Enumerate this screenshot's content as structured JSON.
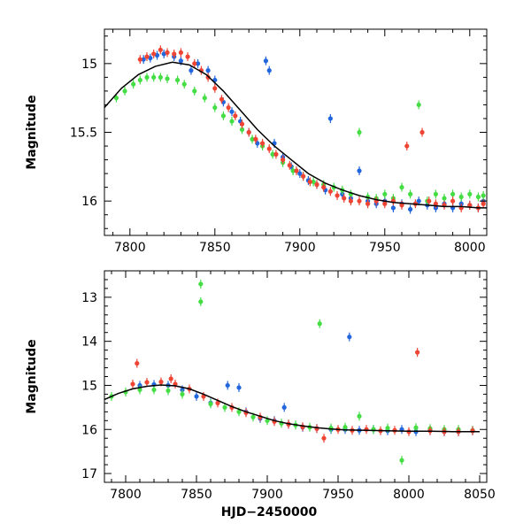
{
  "chart_data": [
    {
      "type": "scatter",
      "xlabel": "",
      "ylabel": "Magnitude",
      "xlim": [
        7785,
        8010
      ],
      "ylim": [
        16.25,
        14.75
      ],
      "y_inverted": true,
      "x_ticks": [
        "7800",
        "7850",
        "7900",
        "7950",
        "8000"
      ],
      "y_ticks": [
        "15",
        "15.5",
        "16"
      ],
      "grid": false,
      "legend": "none",
      "series": [
        {
          "color": "#2266dd",
          "points": [
            [
              7808,
              14.97
            ],
            [
              7812,
              14.96
            ],
            [
              7816,
              14.94
            ],
            [
              7820,
              14.93
            ],
            [
              7826,
              14.95
            ],
            [
              7830,
              14.98
            ],
            [
              7836,
              15.05
            ],
            [
              7840,
              15.0
            ],
            [
              7846,
              15.05
            ],
            [
              7850,
              15.12
            ],
            [
              7855,
              15.28
            ],
            [
              7860,
              15.35
            ],
            [
              7865,
              15.42
            ],
            [
              7870,
              15.5
            ],
            [
              7875,
              15.58
            ],
            [
              7880,
              14.98
            ],
            [
              7882,
              15.05
            ],
            [
              7885,
              15.58
            ],
            [
              7890,
              15.68
            ],
            [
              7895,
              15.75
            ],
            [
              7900,
              15.8
            ],
            [
              7905,
              15.85
            ],
            [
              7910,
              15.88
            ],
            [
              7915,
              15.92
            ],
            [
              7918,
              15.4
            ],
            [
              7925,
              15.95
            ],
            [
              7930,
              15.98
            ],
            [
              7935,
              15.78
            ],
            [
              7940,
              16.0
            ],
            [
              7945,
              16.02
            ],
            [
              7950,
              16.0
            ],
            [
              7955,
              16.05
            ],
            [
              7960,
              16.02
            ],
            [
              7965,
              16.06
            ],
            [
              7970,
              16.0
            ],
            [
              7975,
              16.03
            ],
            [
              7980,
              16.05
            ],
            [
              7985,
              16.02
            ],
            [
              7990,
              16.05
            ],
            [
              7995,
              16.02
            ],
            [
              8000,
              16.03
            ],
            [
              8005,
              16.05
            ],
            [
              8008,
              16.0
            ]
          ]
        },
        {
          "color": "#44dd44",
          "points": [
            [
              7792,
              15.25
            ],
            [
              7797,
              15.2
            ],
            [
              7802,
              15.15
            ],
            [
              7806,
              15.12
            ],
            [
              7810,
              15.1
            ],
            [
              7814,
              15.1
            ],
            [
              7818,
              15.1
            ],
            [
              7822,
              15.11
            ],
            [
              7828,
              15.12
            ],
            [
              7832,
              15.15
            ],
            [
              7838,
              15.2
            ],
            [
              7844,
              15.25
            ],
            [
              7850,
              15.32
            ],
            [
              7855,
              15.38
            ],
            [
              7860,
              15.42
            ],
            [
              7866,
              15.48
            ],
            [
              7872,
              15.55
            ],
            [
              7878,
              15.6
            ],
            [
              7884,
              15.66
            ],
            [
              7890,
              15.72
            ],
            [
              7896,
              15.78
            ],
            [
              7902,
              15.82
            ],
            [
              7908,
              15.86
            ],
            [
              7914,
              15.88
            ],
            [
              7920,
              15.9
            ],
            [
              7925,
              15.92
            ],
            [
              7930,
              15.95
            ],
            [
              7935,
              15.5
            ],
            [
              7940,
              15.97
            ],
            [
              7945,
              15.98
            ],
            [
              7950,
              15.95
            ],
            [
              7955,
              15.98
            ],
            [
              7960,
              15.9
            ],
            [
              7965,
              15.95
            ],
            [
              7970,
              15.3
            ],
            [
              7975,
              16.0
            ],
            [
              7980,
              15.95
            ],
            [
              7985,
              15.98
            ],
            [
              7990,
              15.95
            ],
            [
              7995,
              15.97
            ],
            [
              8000,
              15.95
            ],
            [
              8005,
              15.97
            ],
            [
              8008,
              15.96
            ]
          ]
        },
        {
          "color": "#ee4433",
          "points": [
            [
              7806,
              14.97
            ],
            [
              7810,
              14.95
            ],
            [
              7814,
              14.93
            ],
            [
              7818,
              14.9
            ],
            [
              7822,
              14.92
            ],
            [
              7826,
              14.93
            ],
            [
              7830,
              14.92
            ],
            [
              7834,
              14.95
            ],
            [
              7838,
              15.0
            ],
            [
              7842,
              15.05
            ],
            [
              7846,
              15.1
            ],
            [
              7850,
              15.18
            ],
            [
              7854,
              15.26
            ],
            [
              7858,
              15.32
            ],
            [
              7862,
              15.38
            ],
            [
              7866,
              15.44
            ],
            [
              7870,
              15.5
            ],
            [
              7874,
              15.55
            ],
            [
              7878,
              15.58
            ],
            [
              7882,
              15.62
            ],
            [
              7886,
              15.66
            ],
            [
              7890,
              15.7
            ],
            [
              7894,
              15.74
            ],
            [
              7898,
              15.78
            ],
            [
              7902,
              15.82
            ],
            [
              7906,
              15.86
            ],
            [
              7910,
              15.88
            ],
            [
              7914,
              15.9
            ],
            [
              7918,
              15.93
            ],
            [
              7922,
              15.96
            ],
            [
              7926,
              15.98
            ],
            [
              7930,
              16.0
            ],
            [
              7935,
              16.0
            ],
            [
              7940,
              16.02
            ],
            [
              7945,
              16.0
            ],
            [
              7950,
              16.02
            ],
            [
              7955,
              16.0
            ],
            [
              7960,
              16.03
            ],
            [
              7963,
              15.6
            ],
            [
              7968,
              16.02
            ],
            [
              7972,
              15.5
            ],
            [
              7976,
              16.0
            ],
            [
              7980,
              16.02
            ],
            [
              7985,
              16.03
            ],
            [
              7990,
              16.0
            ],
            [
              7995,
              16.05
            ],
            [
              8000,
              16.03
            ],
            [
              8005,
              16.05
            ],
            [
              8008,
              16.02
            ]
          ]
        }
      ],
      "model_curve": [
        [
          7785,
          15.32
        ],
        [
          7795,
          15.18
        ],
        [
          7805,
          15.08
        ],
        [
          7815,
          15.02
        ],
        [
          7825,
          14.99
        ],
        [
          7835,
          15.01
        ],
        [
          7845,
          15.08
        ],
        [
          7855,
          15.2
        ],
        [
          7865,
          15.34
        ],
        [
          7875,
          15.48
        ],
        [
          7885,
          15.6
        ],
        [
          7895,
          15.7
        ],
        [
          7905,
          15.8
        ],
        [
          7915,
          15.87
        ],
        [
          7925,
          15.92
        ],
        [
          7935,
          15.96
        ],
        [
          7945,
          15.99
        ],
        [
          7955,
          16.01
        ],
        [
          7965,
          16.02
        ],
        [
          7975,
          16.03
        ],
        [
          7985,
          16.04
        ],
        [
          7995,
          16.04
        ],
        [
          8005,
          16.05
        ],
        [
          8010,
          16.05
        ]
      ]
    },
    {
      "type": "scatter",
      "xlabel": "HJD−2450000",
      "ylabel": "Magnitude",
      "xlim": [
        7785,
        8055
      ],
      "ylim": [
        17.2,
        12.4
      ],
      "y_inverted": true,
      "x_ticks": [
        "7800",
        "7850",
        "7900",
        "7950",
        "8000",
        "8050"
      ],
      "y_ticks": [
        "13",
        "14",
        "15",
        "16",
        "17"
      ],
      "grid": false,
      "legend": "none",
      "series": [
        {
          "color": "#2266dd",
          "points": [
            [
              7810,
              15.0
            ],
            [
              7820,
              14.98
            ],
            [
              7830,
              15.0
            ],
            [
              7840,
              15.1
            ],
            [
              7850,
              15.25
            ],
            [
              7860,
              15.4
            ],
            [
              7872,
              15.0
            ],
            [
              7880,
              15.05
            ],
            [
              7885,
              15.6
            ],
            [
              7895,
              15.75
            ],
            [
              7905,
              15.8
            ],
            [
              7912,
              15.5
            ],
            [
              7915,
              15.88
            ],
            [
              7925,
              15.95
            ],
            [
              7935,
              15.98
            ],
            [
              7945,
              16.0
            ],
            [
              7955,
              16.0
            ],
            [
              7958,
              13.9
            ],
            [
              7965,
              16.02
            ],
            [
              7975,
              16.0
            ],
            [
              7985,
              16.03
            ],
            [
              7995,
              16.0
            ],
            [
              8005,
              16.05
            ],
            [
              8015,
              16.02
            ],
            [
              8025,
              16.05
            ],
            [
              8035,
              16.05
            ],
            [
              8045,
              16.03
            ]
          ]
        },
        {
          "color": "#44dd44",
          "points": [
            [
              7790,
              15.25
            ],
            [
              7800,
              15.15
            ],
            [
              7810,
              15.1
            ],
            [
              7820,
              15.1
            ],
            [
              7830,
              15.12
            ],
            [
              7840,
              15.2
            ],
            [
              7853,
              12.7
            ],
            [
              7853,
              13.1
            ],
            [
              7860,
              15.42
            ],
            [
              7870,
              15.5
            ],
            [
              7880,
              15.6
            ],
            [
              7890,
              15.72
            ],
            [
              7900,
              15.8
            ],
            [
              7910,
              15.86
            ],
            [
              7920,
              15.9
            ],
            [
              7930,
              15.95
            ],
            [
              7937,
              13.6
            ],
            [
              7945,
              15.97
            ],
            [
              7955,
              15.95
            ],
            [
              7965,
              15.7
            ],
            [
              7975,
              16.0
            ],
            [
              7985,
              15.97
            ],
            [
              7995,
              16.7
            ],
            [
              8005,
              15.96
            ],
            [
              8015,
              15.98
            ],
            [
              8025,
              16.0
            ],
            [
              8035,
              16.0
            ],
            [
              8045,
              16.02
            ]
          ]
        },
        {
          "color": "#ee4433",
          "points": [
            [
              7805,
              14.97
            ],
            [
              7808,
              14.5
            ],
            [
              7815,
              14.93
            ],
            [
              7825,
              14.92
            ],
            [
              7832,
              14.85
            ],
            [
              7835,
              14.97
            ],
            [
              7845,
              15.08
            ],
            [
              7855,
              15.25
            ],
            [
              7865,
              15.4
            ],
            [
              7875,
              15.5
            ],
            [
              7885,
              15.62
            ],
            [
              7895,
              15.72
            ],
            [
              7905,
              15.82
            ],
            [
              7915,
              15.88
            ],
            [
              7925,
              15.94
            ],
            [
              7935,
              15.98
            ],
            [
              7940,
              16.2
            ],
            [
              7950,
              16.0
            ],
            [
              7960,
              16.02
            ],
            [
              7970,
              16.0
            ],
            [
              7980,
              16.03
            ],
            [
              7990,
              16.02
            ],
            [
              8000,
              16.05
            ],
            [
              8006,
              14.25
            ],
            [
              8015,
              16.03
            ],
            [
              8025,
              16.05
            ],
            [
              8035,
              16.05
            ],
            [
              8045,
              16.03
            ]
          ]
        }
      ],
      "model_curve": [
        [
          7785,
          15.32
        ],
        [
          7795,
          15.18
        ],
        [
          7805,
          15.08
        ],
        [
          7815,
          15.02
        ],
        [
          7825,
          14.99
        ],
        [
          7835,
          15.01
        ],
        [
          7845,
          15.08
        ],
        [
          7855,
          15.2
        ],
        [
          7865,
          15.34
        ],
        [
          7875,
          15.48
        ],
        [
          7885,
          15.6
        ],
        [
          7895,
          15.7
        ],
        [
          7905,
          15.8
        ],
        [
          7915,
          15.87
        ],
        [
          7925,
          15.92
        ],
        [
          7935,
          15.96
        ],
        [
          7945,
          15.99
        ],
        [
          7955,
          16.01
        ],
        [
          7970,
          16.02
        ],
        [
          7985,
          16.03
        ],
        [
          8000,
          16.04
        ],
        [
          8015,
          16.04
        ],
        [
          8030,
          16.05
        ],
        [
          8050,
          16.05
        ]
      ]
    }
  ]
}
